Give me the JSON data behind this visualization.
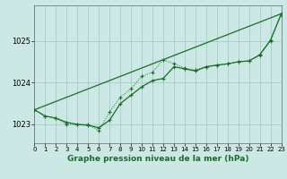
{
  "title": "Graphe pression niveau de la mer (hPa)",
  "bg_color": "#cce8e4",
  "grid_color": "#aad0cc",
  "line_color": "#1a6b2a",
  "xlim": [
    0,
    23
  ],
  "ylim": [
    1022.55,
    1025.85
  ],
  "yticks": [
    1023,
    1024,
    1025
  ],
  "xticks": [
    0,
    1,
    2,
    3,
    4,
    5,
    6,
    7,
    8,
    9,
    10,
    11,
    12,
    13,
    14,
    15,
    16,
    17,
    18,
    19,
    20,
    21,
    22,
    23
  ],
  "series_dotted": [
    [
      0,
      1023.35
    ],
    [
      1,
      1023.2
    ],
    [
      2,
      1023.15
    ],
    [
      3,
      1023.0
    ],
    [
      4,
      1023.0
    ],
    [
      5,
      1023.0
    ],
    [
      6,
      1022.85
    ],
    [
      7,
      1023.3
    ],
    [
      8,
      1023.65
    ],
    [
      9,
      1023.85
    ],
    [
      10,
      1024.15
    ],
    [
      11,
      1024.25
    ],
    [
      12,
      1024.55
    ],
    [
      13,
      1024.45
    ],
    [
      14,
      1024.35
    ],
    [
      15,
      1024.3
    ],
    [
      16,
      1024.38
    ],
    [
      17,
      1024.42
    ],
    [
      18,
      1024.45
    ],
    [
      19,
      1024.5
    ],
    [
      20,
      1024.52
    ],
    [
      21,
      1024.65
    ],
    [
      22,
      1025.0
    ],
    [
      23,
      1025.62
    ]
  ],
  "series_solid": [
    [
      0,
      1023.35
    ],
    [
      1,
      1023.2
    ],
    [
      2,
      1023.15
    ],
    [
      3,
      1023.05
    ],
    [
      4,
      1023.0
    ],
    [
      5,
      1022.98
    ],
    [
      6,
      1022.92
    ],
    [
      7,
      1023.1
    ],
    [
      8,
      1023.5
    ],
    [
      9,
      1023.7
    ],
    [
      10,
      1023.9
    ],
    [
      11,
      1024.05
    ],
    [
      12,
      1024.1
    ],
    [
      13,
      1024.38
    ],
    [
      14,
      1024.33
    ],
    [
      15,
      1024.28
    ],
    [
      16,
      1024.38
    ],
    [
      17,
      1024.42
    ],
    [
      18,
      1024.45
    ],
    [
      19,
      1024.5
    ],
    [
      20,
      1024.52
    ],
    [
      21,
      1024.67
    ],
    [
      22,
      1025.02
    ],
    [
      23,
      1025.65
    ]
  ],
  "trend_x": [
    0,
    23
  ],
  "trend_y": [
    1023.35,
    1025.65
  ]
}
